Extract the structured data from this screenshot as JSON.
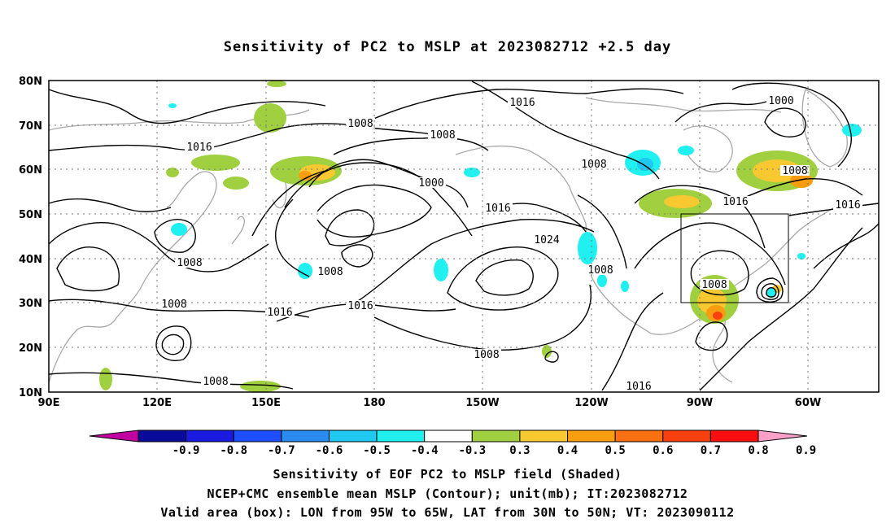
{
  "title": "Sensitivity of PC2 to MSLP at 2023082712 +2.5 day",
  "map": {
    "lat_labels": [
      "80N",
      "70N",
      "60N",
      "50N",
      "40N",
      "30N",
      "20N",
      "10N"
    ],
    "lon_labels": [
      "90E",
      "120E",
      "150E",
      "180",
      "150W",
      "120W",
      "90W",
      "60W"
    ],
    "lon_range": [
      "90E",
      "40W"
    ],
    "lat_range": [
      "10N",
      "80N"
    ],
    "gridlines": "dotted",
    "contour_labels": [
      "1016",
      "1008",
      "1008",
      "1016",
      "1000",
      "1016",
      "1024",
      "1008",
      "1016",
      "1000",
      "1008",
      "1016",
      "1008",
      "1008",
      "1008",
      "1016",
      "1016",
      "1008",
      "1008",
      "1016",
      "1008",
      "1008"
    ],
    "valid_box": {
      "lon_from": "95W",
      "lon_to": "65W",
      "lat_from": "30N",
      "lat_to": "50N"
    }
  },
  "colorbar": {
    "labels": [
      "-0.9",
      "-0.8",
      "-0.7",
      "-0.6",
      "-0.5",
      "-0.4",
      "-0.3",
      "0.3",
      "0.4",
      "0.5",
      "0.6",
      "0.7",
      "0.8",
      "0.9"
    ],
    "colors": [
      "#c000a0",
      "#0a0a9a",
      "#1a1ae0",
      "#1e50ff",
      "#2a8cf0",
      "#1ec8f0",
      "#20f0f0",
      "#ffffff",
      "#a0d040",
      "#f8c830",
      "#f89c10",
      "#f87010",
      "#f84010",
      "#f81010",
      "#f8a0c8"
    ]
  },
  "captions": {
    "line1": "Sensitivity of EOF PC2 to MSLP field (Shaded)",
    "line2": "NCEP+CMC ensemble mean MSLP (Contour); unit(mb); IT:2023082712",
    "line3": "Valid area (box): LON from 95W to 65W, LAT from 30N to 50N; VT: 2023090112"
  }
}
